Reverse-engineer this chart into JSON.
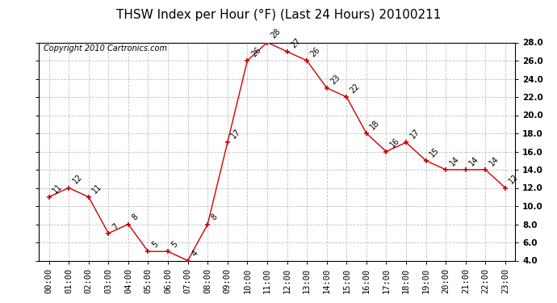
{
  "title": "THSW Index per Hour (°F) (Last 24 Hours) 20100211",
  "copyright": "Copyright 2010 Cartronics.com",
  "x_labels": [
    "00:00",
    "01:00",
    "02:00",
    "03:00",
    "04:00",
    "05:00",
    "06:00",
    "07:00",
    "08:00",
    "09:00",
    "10:00",
    "11:00",
    "12:00",
    "13:00",
    "14:00",
    "15:00",
    "16:00",
    "17:00",
    "18:00",
    "19:00",
    "20:00",
    "21:00",
    "22:00",
    "23:00"
  ],
  "x_values": [
    0,
    1,
    2,
    3,
    4,
    5,
    6,
    7,
    8,
    9,
    10,
    11,
    12,
    13,
    14,
    15,
    16,
    17,
    18,
    19,
    20,
    21,
    22,
    23
  ],
  "y_values": [
    11,
    12,
    11,
    7,
    8,
    5,
    5,
    4,
    8,
    17,
    26,
    28,
    27,
    26,
    23,
    22,
    18,
    16,
    17,
    15,
    14,
    14,
    14,
    12
  ],
  "line_color": "#cc0000",
  "marker_color": "#cc0000",
  "bg_color": "#ffffff",
  "grid_color": "#c0c0c0",
  "ylim": [
    4.0,
    28.0
  ],
  "yticks": [
    4.0,
    6.0,
    8.0,
    10.0,
    12.0,
    14.0,
    16.0,
    18.0,
    20.0,
    22.0,
    24.0,
    26.0,
    28.0
  ],
  "title_fontsize": 11,
  "label_fontsize": 7.5,
  "annotation_fontsize": 7,
  "copyright_fontsize": 7
}
